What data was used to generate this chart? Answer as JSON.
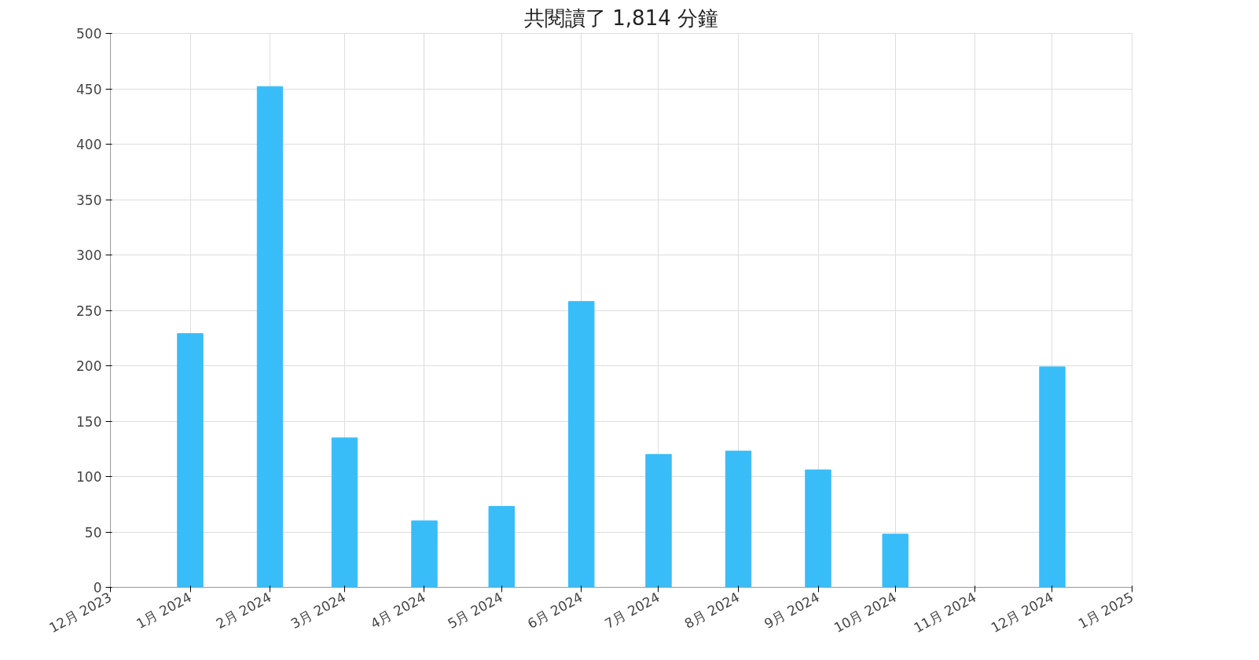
{
  "chart_data": {
    "type": "bar",
    "title": "共閱讀了 1,814 分鐘",
    "x": [
      "2024-01-01",
      "2024-02-01",
      "2024-03-01",
      "2024-04-01",
      "2024-05-01",
      "2024-06-01",
      "2024-07-01",
      "2024-08-01",
      "2024-09-01",
      "2024-10-01",
      "2024-11-01",
      "2024-12-01"
    ],
    "series": [
      {
        "color": "#38bdf8",
        "values": [
          229,
          452,
          135,
          60,
          73,
          258,
          120,
          123,
          106,
          48,
          null,
          199
        ]
      }
    ],
    "xlim": [
      "2023-12-01",
      "2025-01-01"
    ],
    "xticks": [
      {
        "value": "2023-12-01",
        "label": "12月 2023"
      },
      {
        "value": "2024-01-01",
        "label": "1月 2024"
      },
      {
        "value": "2024-02-01",
        "label": "2月 2024"
      },
      {
        "value": "2024-03-01",
        "label": "3月 2024"
      },
      {
        "value": "2024-04-01",
        "label": "4月 2024"
      },
      {
        "value": "2024-05-01",
        "label": "5月 2024"
      },
      {
        "value": "2024-06-01",
        "label": "6月 2024"
      },
      {
        "value": "2024-07-01",
        "label": "7月 2024"
      },
      {
        "value": "2024-08-01",
        "label": "8月 2024"
      },
      {
        "value": "2024-09-01",
        "label": "9月 2024"
      },
      {
        "value": "2024-10-01",
        "label": "10月 2024"
      },
      {
        "value": "2024-11-01",
        "label": "11月 2024"
      },
      {
        "value": "2024-12-01",
        "label": "12月 2024"
      },
      {
        "value": "2025-01-01",
        "label": "1月 2025"
      }
    ],
    "ylim": [
      0,
      500
    ],
    "yticks": [
      0,
      50,
      100,
      150,
      200,
      250,
      300,
      350,
      400,
      450,
      500
    ],
    "grid": true
  }
}
